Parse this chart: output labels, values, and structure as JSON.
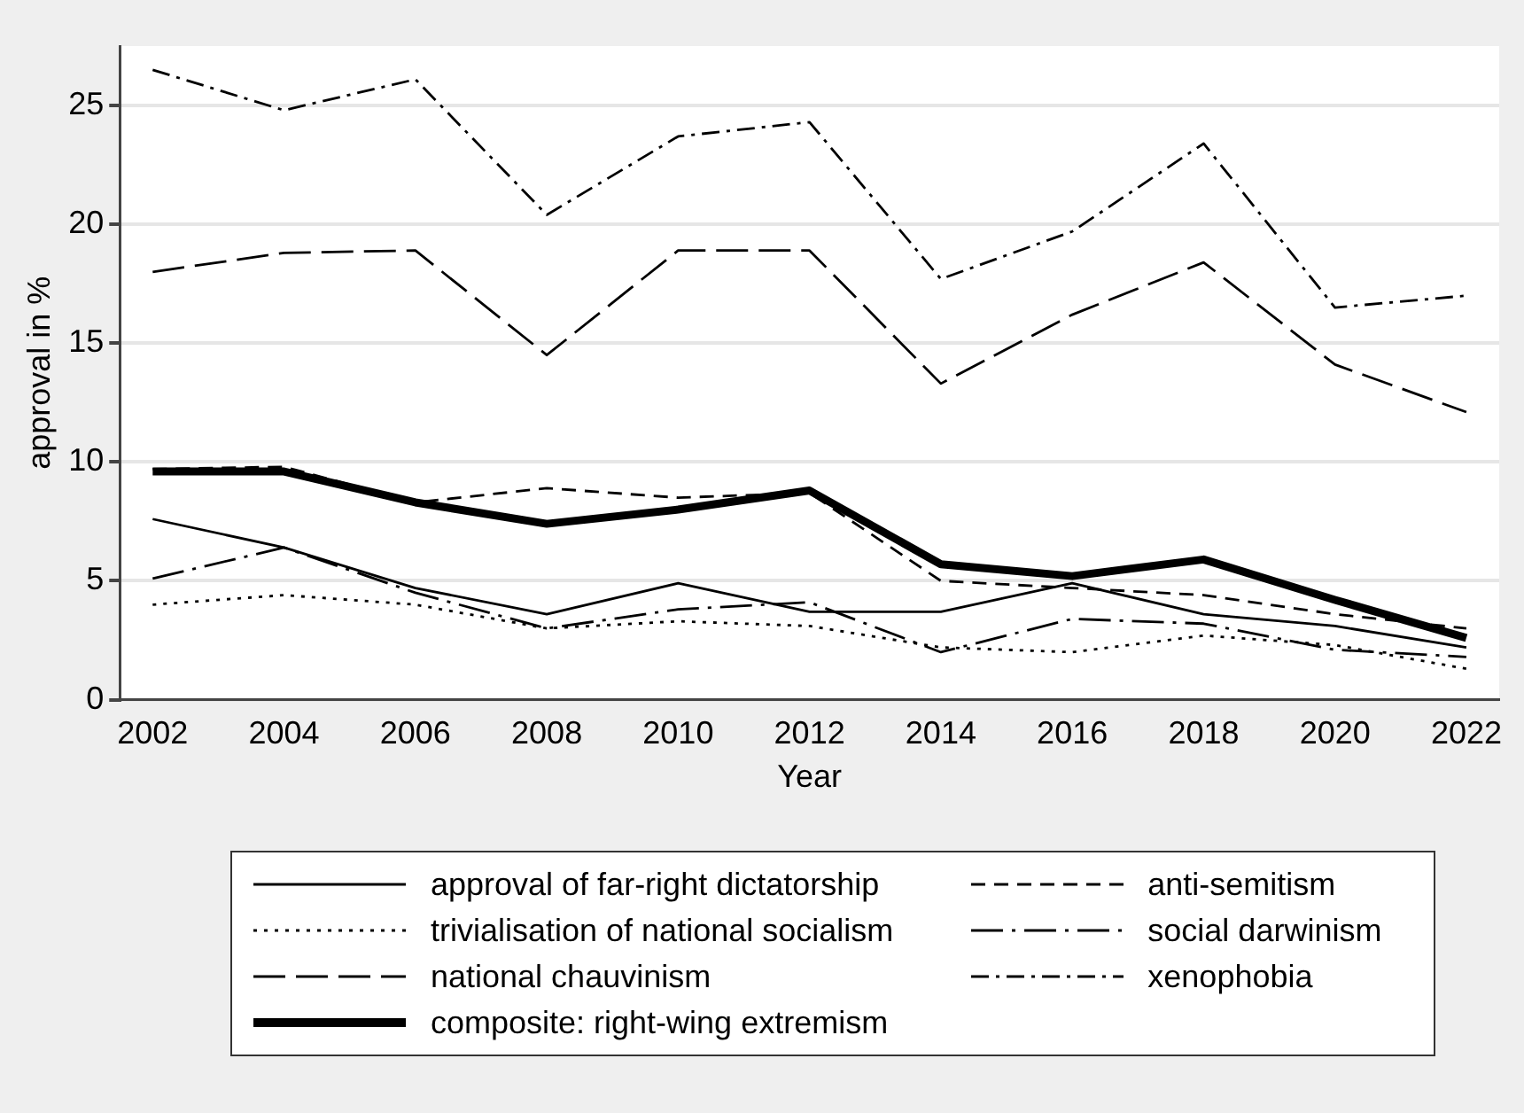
{
  "chart_data": {
    "type": "line",
    "xlabel": "Year",
    "ylabel": "approval in %",
    "x": [
      2002,
      2004,
      2006,
      2008,
      2010,
      2012,
      2014,
      2016,
      2018,
      2020,
      2022
    ],
    "xlim": [
      2001.5,
      2022.5
    ],
    "xticks": [
      2002,
      2004,
      2006,
      2008,
      2010,
      2012,
      2014,
      2016,
      2018,
      2020,
      2022
    ],
    "ylim": [
      0,
      27.5
    ],
    "yticks": [
      0,
      5,
      10,
      15,
      20,
      25
    ],
    "grid": "y",
    "legend": "bottom",
    "marker": "none",
    "series": [
      {
        "name": "approval of far-right dictatorship",
        "color": "#000000",
        "line_style": "solid",
        "values": [
          7.6,
          6.4,
          4.7,
          3.6,
          4.9,
          3.7,
          3.7,
          4.9,
          3.6,
          3.1,
          2.2
        ]
      },
      {
        "name": "anti-semitism",
        "color": "#000000",
        "line_style": "dashed",
        "values": [
          9.7,
          9.8,
          8.3,
          8.9,
          8.5,
          8.7,
          5.0,
          4.7,
          4.4,
          3.6,
          3.0
        ]
      },
      {
        "name": "trivialisation of national socialism",
        "color": "#000000",
        "line_style": "dotted",
        "values": [
          4.0,
          4.4,
          4.0,
          3.0,
          3.3,
          3.1,
          2.2,
          2.0,
          2.7,
          2.3,
          1.3
        ]
      },
      {
        "name": "social darwinism",
        "color": "#000000",
        "line_style": "longdashdot",
        "values": [
          5.1,
          6.4,
          4.5,
          3.0,
          3.8,
          4.1,
          2.0,
          3.4,
          3.2,
          2.1,
          1.8
        ]
      },
      {
        "name": "national chauvinism",
        "color": "#000000",
        "line_style": "longdashed",
        "values": [
          18.0,
          18.8,
          18.9,
          14.5,
          18.9,
          18.9,
          13.3,
          16.2,
          18.4,
          14.1,
          12.1
        ]
      },
      {
        "name": "xenophobia",
        "color": "#000000",
        "line_style": "dashdot",
        "values": [
          26.5,
          24.8,
          26.1,
          20.4,
          23.7,
          24.3,
          17.7,
          19.7,
          23.4,
          16.5,
          17.0
        ]
      },
      {
        "name": "composite: right-wing extremism",
        "color": "#000000",
        "line_style": "solid",
        "values": [
          9.6,
          9.6,
          8.3,
          7.4,
          8.0,
          8.8,
          5.7,
          5.2,
          5.9,
          4.2,
          2.6
        ]
      }
    ]
  }
}
